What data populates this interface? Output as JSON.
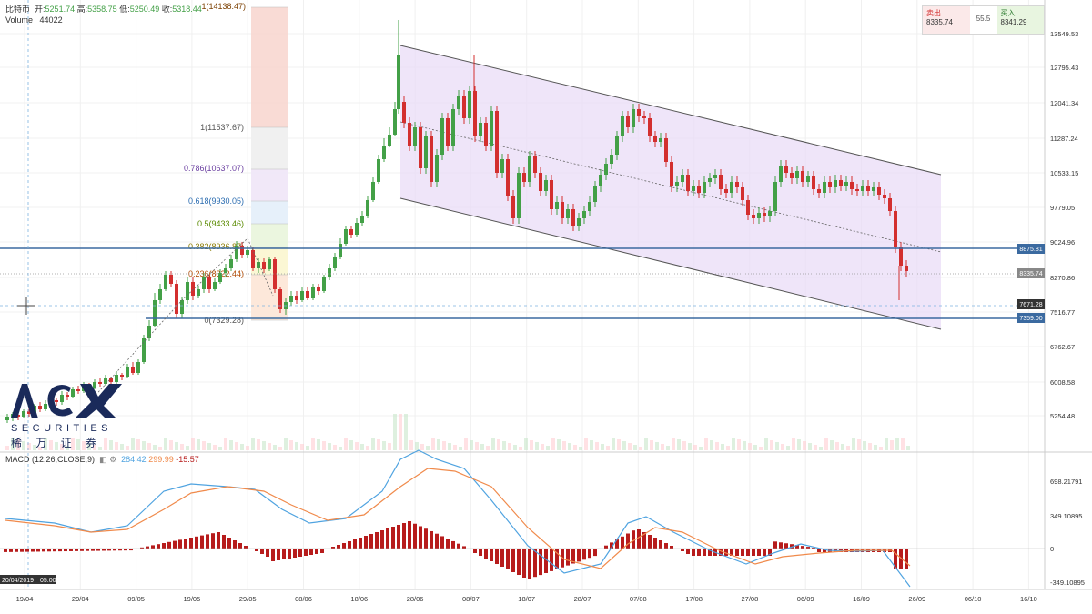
{
  "header": {
    "symbol": "比特币",
    "open_label": "开:",
    "open_value": "5251.74",
    "high_label": "高:",
    "high_value": "5358.75",
    "low_label": "低:",
    "low_value": "5250.49",
    "close_label": "收:",
    "close_value": "5318.44",
    "volume_label": "Volume",
    "volume_value": "44022"
  },
  "trade_box": {
    "sell_label": "卖出",
    "sell_price": "8335.74",
    "spread": "55.5",
    "buy_label": "买入",
    "buy_price": "8341.29"
  },
  "price_axis": {
    "ticks": [
      "13549.53",
      "12795.43",
      "12041.34",
      "11287.24",
      "10533.15",
      "9779.05",
      "9024.96",
      "8270.86",
      "7516.77",
      "6762.67",
      "6008.58",
      "5254.48"
    ],
    "badges": [
      "8875.81",
      "8335.74",
      "7671.28",
      "7359.00"
    ]
  },
  "macd": {
    "label": "MACD (12,26,CLOSE,9)",
    "macd_value": "284.42",
    "signal_value": "299.99",
    "hist_value": "-15.57",
    "ticks": [
      "698.21791",
      "349.10895",
      "0",
      "-349.10895"
    ]
  },
  "fib": {
    "levels": [
      "1(14138.47)",
      "1(11537.67)",
      "0.786(10637.07)",
      "0.618(9930.05)",
      "0.5(9433.46)",
      "0.382(8936.87)",
      "0.236(8322.44)",
      "0(7329.28)"
    ]
  },
  "date_axis": {
    "labels": [
      "19/04",
      "29/04",
      "09/05",
      "19/05",
      "29/05",
      "08/06",
      "18/06",
      "28/06",
      "08/07",
      "18/07",
      "28/07",
      "07/08",
      "17/08",
      "27/08",
      "06/09",
      "16/09",
      "26/09",
      "06/10",
      "16/10"
    ],
    "crosshair_date": "20/04/2019",
    "crosshair_time": "05:00"
  },
  "logo": {
    "brand": "ACY",
    "sub": "SECURITIES",
    "cn": "稀 万 证 券"
  },
  "colors": {
    "up": "#43a047",
    "down": "#d32f2f",
    "channel_fill": "#e9dcf7",
    "hline": "#3b6aa0",
    "macd_line": "#4fa3e0",
    "signal_line": "#f08a4b",
    "hist": "#b71c1c"
  }
}
